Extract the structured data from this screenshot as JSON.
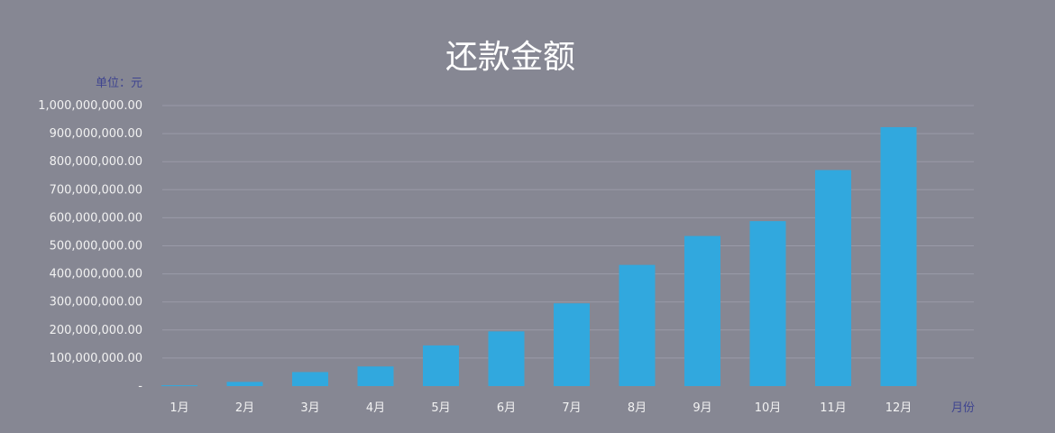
{
  "chart_data": {
    "type": "bar",
    "title": "还款金额",
    "ylabel": "单位：元",
    "xlabel": "月份",
    "categories": [
      "1月",
      "2月",
      "3月",
      "4月",
      "5月",
      "6月",
      "7月",
      "8月",
      "9月",
      "10月",
      "11月",
      "12月"
    ],
    "values": [
      3000000,
      15000000,
      50000000,
      70000000,
      145000000,
      195000000,
      295000000,
      432000000,
      535000000,
      588000000,
      770000000,
      923000000
    ],
    "ylim": [
      0,
      1000000000
    ],
    "yticks": [
      "-",
      "100,000,000.00",
      "200,000,000.00",
      "300,000,000.00",
      "400,000,000.00",
      "500,000,000.00",
      "600,000,000.00",
      "700,000,000.00",
      "800,000,000.00",
      "900,000,000.00",
      "1,000,000,000.00"
    ],
    "grid": true,
    "colors": {
      "bar": "#31a8de",
      "background": "#868793",
      "grid": "#9a9aa8",
      "text": "#f2f2f2",
      "unit": "#3f4490"
    }
  }
}
